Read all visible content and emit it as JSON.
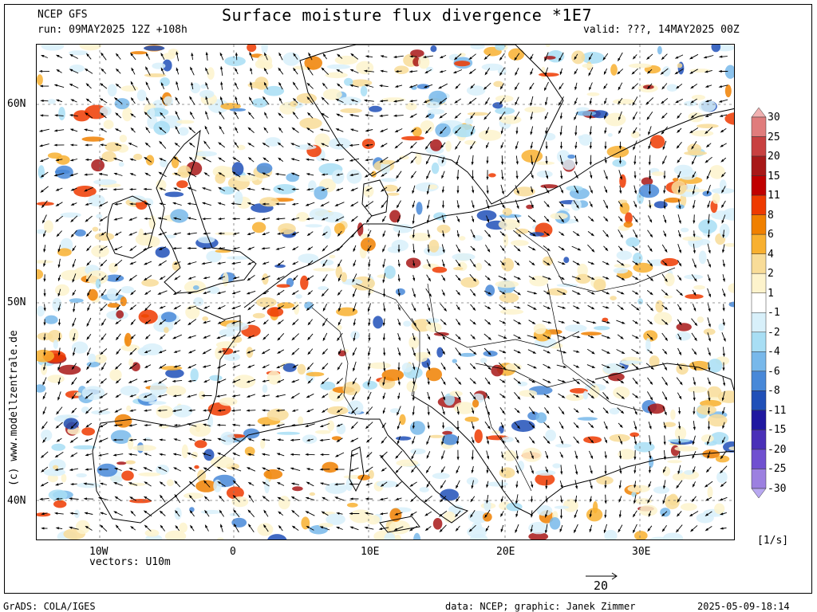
{
  "header": {
    "model": "NCEP GFS",
    "run": "run: 09MAY2025 12Z +108h",
    "title": "Surface moisture flux divergence *1E7",
    "valid": "valid: ???, 14MAY2025 00Z"
  },
  "axes": {
    "lat_labels": [
      "60N",
      "50N",
      "40N"
    ],
    "lon_labels": [
      "10W",
      "0",
      "10E",
      "20E",
      "30E"
    ]
  },
  "vectors_label": "vectors: U10m",
  "reference_vector": "20",
  "colorbar": {
    "unit": "[1/s]",
    "levels": [
      "30",
      "25",
      "20",
      "15",
      "11",
      "8",
      "6",
      "4",
      "2",
      "1",
      "-1",
      "-2",
      "-4",
      "-6",
      "-8",
      "-11",
      "-15",
      "-20",
      "-25",
      "-30"
    ],
    "colors": [
      "#f0b0b0",
      "#e07c7c",
      "#c84040",
      "#a81818",
      "#c00000",
      "#ee3a00",
      "#f08000",
      "#f8b030",
      "#f8dc98",
      "#fdf3cc",
      "#ffffff",
      "#d8f0fa",
      "#a8def4",
      "#78b8ea",
      "#4888d8",
      "#2050b8",
      "#2018a0",
      "#4a30b8",
      "#7050d0",
      "#9c80e0",
      "#b8a8f0"
    ]
  },
  "copyright": "(c) www.modellzentrale.de",
  "footer": {
    "grads": "GrADS: COLA/IGES",
    "credit": "data: NCEP; graphic: Janek Zimmer",
    "timestamp": "2025-05-09-18:14"
  }
}
